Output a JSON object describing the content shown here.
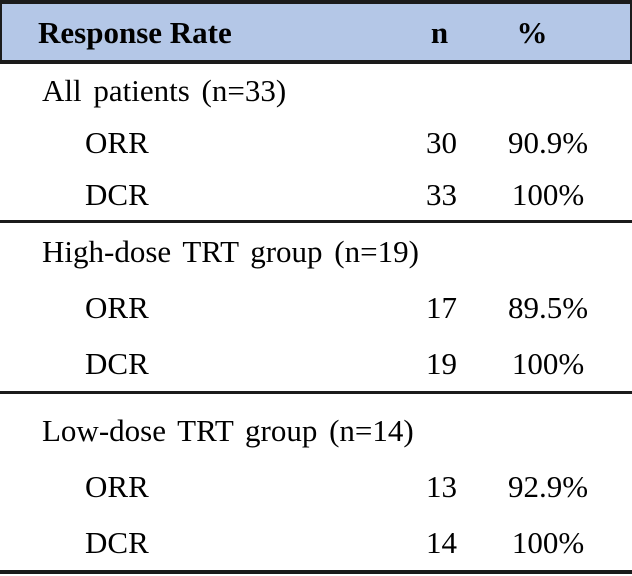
{
  "colors": {
    "header_bg": "#B4C7E7",
    "rule_color": "#1B1B1B",
    "text_color": "#000000"
  },
  "table": {
    "header": {
      "response_rate": "Response Rate",
      "n": "n",
      "percent": "%"
    },
    "sections": [
      {
        "label": "All patients (n=33)",
        "rows": [
          {
            "measure": "ORR",
            "n": "30",
            "percent": "90.9%"
          },
          {
            "measure": "DCR",
            "n": "33",
            "percent": "100%"
          }
        ]
      },
      {
        "label": "High-dose TRT group (n=19)",
        "rows": [
          {
            "measure": "ORR",
            "n": "17",
            "percent": "89.5%"
          },
          {
            "measure": "DCR",
            "n": "19",
            "percent": "100%"
          }
        ]
      },
      {
        "label": "Low-dose TRT group (n=14)",
        "rows": [
          {
            "measure": "ORR",
            "n": "13",
            "percent": "92.9%"
          },
          {
            "measure": "DCR",
            "n": "14",
            "percent": "100%"
          }
        ]
      }
    ]
  },
  "chart_data": {
    "type": "table",
    "title": "Response Rate",
    "columns": [
      "Response Rate",
      "n",
      "%"
    ],
    "rows": [
      [
        "All patients (n=33)",
        "",
        ""
      ],
      [
        "ORR",
        "30",
        "90.9%"
      ],
      [
        "DCR",
        "33",
        "100%"
      ],
      [
        "High-dose TRT group (n=19)",
        "",
        ""
      ],
      [
        "ORR",
        "17",
        "89.5%"
      ],
      [
        "DCR",
        "19",
        "100%"
      ],
      [
        "Low-dose TRT group (n=14)",
        "",
        ""
      ],
      [
        "ORR",
        "13",
        "92.9%"
      ],
      [
        "DCR",
        "14",
        "100%"
      ]
    ]
  }
}
